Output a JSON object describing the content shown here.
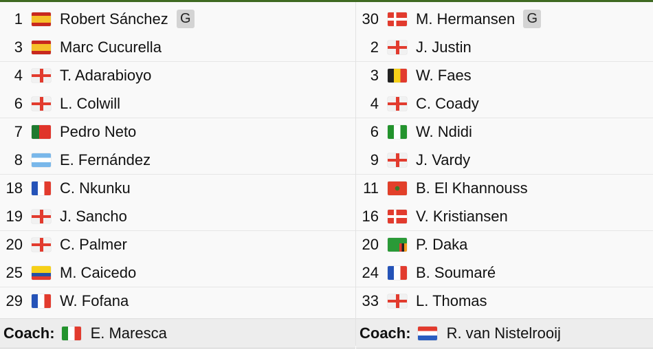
{
  "home": {
    "players": [
      {
        "number": "1",
        "flag": "es",
        "name": "Robert Sánchez",
        "badge": "G"
      },
      {
        "number": "3",
        "flag": "es",
        "name": "Marc Cucurella"
      },
      {
        "number": "4",
        "flag": "en",
        "name": "T. Adarabioyo"
      },
      {
        "number": "6",
        "flag": "en",
        "name": "L. Colwill"
      },
      {
        "number": "7",
        "flag": "pt",
        "name": "Pedro Neto"
      },
      {
        "number": "8",
        "flag": "ar",
        "name": "E. Fernández"
      },
      {
        "number": "18",
        "flag": "fr",
        "name": "C. Nkunku"
      },
      {
        "number": "19",
        "flag": "en",
        "name": "J. Sancho"
      },
      {
        "number": "20",
        "flag": "en",
        "name": "C. Palmer"
      },
      {
        "number": "25",
        "flag": "ec",
        "name": "M. Caicedo"
      },
      {
        "number": "29",
        "flag": "fr",
        "name": "W. Fofana"
      }
    ],
    "coach": {
      "label": "Coach:",
      "flag": "it",
      "name": "E. Maresca"
    }
  },
  "away": {
    "players": [
      {
        "number": "30",
        "flag": "dk",
        "name": "M. Hermansen",
        "badge": "G"
      },
      {
        "number": "2",
        "flag": "en",
        "name": "J. Justin"
      },
      {
        "number": "3",
        "flag": "be",
        "name": "W. Faes"
      },
      {
        "number": "4",
        "flag": "en",
        "name": "C. Coady"
      },
      {
        "number": "6",
        "flag": "ng",
        "name": "W. Ndidi"
      },
      {
        "number": "9",
        "flag": "en",
        "name": "J. Vardy"
      },
      {
        "number": "11",
        "flag": "ma",
        "name": "B. El Khannouss"
      },
      {
        "number": "16",
        "flag": "dk",
        "name": "V. Kristiansen"
      },
      {
        "number": "20",
        "flag": "zm",
        "name": "P. Daka"
      },
      {
        "number": "24",
        "flag": "fr",
        "name": "B. Soumaré"
      },
      {
        "number": "33",
        "flag": "en",
        "name": "L. Thomas"
      }
    ],
    "coach": {
      "label": "Coach:",
      "flag": "nl",
      "name": "R. van Nistelrooij"
    }
  }
}
